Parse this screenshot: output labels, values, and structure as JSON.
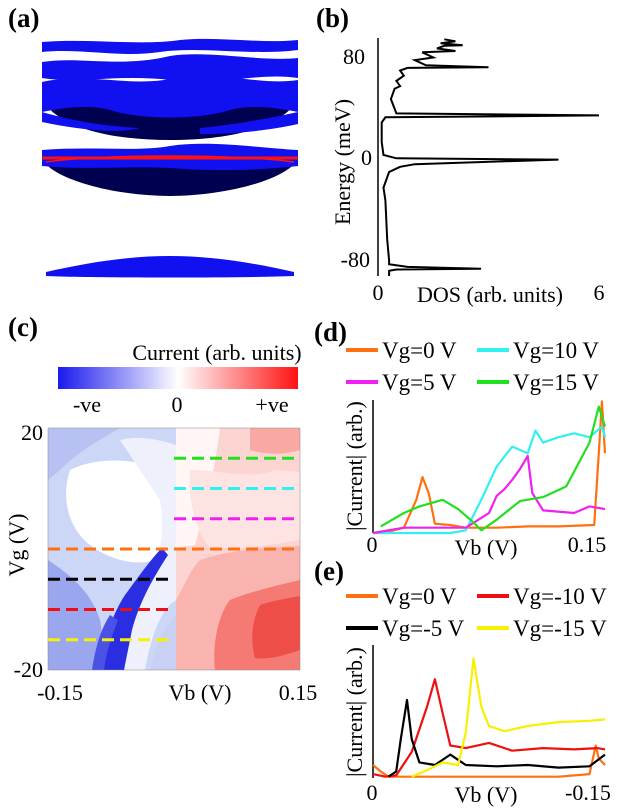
{
  "panels": {
    "a": {
      "label": "(a)"
    },
    "b": {
      "label": "(b)"
    },
    "c": {
      "label": "(c)"
    },
    "d": {
      "label": "(d)"
    },
    "e": {
      "label": "(e)"
    }
  },
  "colors": {
    "band_blue": "#1010f0",
    "band_dark": "#000050",
    "fermi_red": "#ff1010",
    "orange": "#ff7010",
    "cyan": "#30f0f0",
    "magenta": "#f020f0",
    "green": "#20e020",
    "red": "#ee1010",
    "black": "#000000",
    "yellow": "#f8f000"
  },
  "chart_data": [
    {
      "id": "b",
      "type": "line",
      "xlabel": "DOS (arb. units)",
      "ylabel": "Energy (meV)",
      "xlim": [
        0,
        6
      ],
      "ylim": [
        -88,
        95
      ],
      "xticks": [
        "0",
        "6"
      ],
      "yticks": [
        "80",
        "0",
        "-80"
      ],
      "series": [
        {
          "points": [
            [
              0.3,
              -88
            ],
            [
              0.3,
              -84
            ],
            [
              0.5,
              -83
            ],
            [
              2.8,
              -82.5
            ],
            [
              0.8,
              -81
            ],
            [
              0.3,
              -79
            ],
            [
              0.3,
              -76
            ],
            [
              0.25,
              -60
            ],
            [
              0.2,
              -30
            ],
            [
              0.15,
              -20
            ],
            [
              0.3,
              -8
            ],
            [
              0.6,
              -4
            ],
            [
              1.0,
              -2
            ],
            [
              4.9,
              1.5
            ],
            [
              0.5,
              2.5
            ],
            [
              0.15,
              5
            ],
            [
              0.1,
              15
            ],
            [
              0.1,
              30
            ],
            [
              0.2,
              34
            ],
            [
              6.0,
              35.5
            ],
            [
              0.5,
              37
            ],
            [
              0.35,
              48
            ],
            [
              0.45,
              56
            ],
            [
              0.6,
              58
            ],
            [
              0.5,
              62
            ],
            [
              0.7,
              66
            ],
            [
              0.6,
              70
            ],
            [
              0.8,
              72
            ],
            [
              3.0,
              72.5
            ],
            [
              1.3,
              74
            ],
            [
              1.0,
              78
            ],
            [
              1.5,
              80
            ],
            [
              1.2,
              84
            ],
            [
              2.1,
              85
            ],
            [
              1.6,
              87
            ],
            [
              1.8,
              89
            ],
            [
              2.3,
              89.5
            ],
            [
              1.7,
              91
            ],
            [
              2.1,
              92.5
            ],
            [
              1.8,
              94
            ]
          ]
        }
      ]
    },
    {
      "id": "c",
      "type": "heatmap",
      "title": "Current (arb. units)",
      "colorbar_ticks": [
        "-ve",
        "0",
        "+ve"
      ],
      "xlabel": "Vb (V)",
      "ylabel": "Vg (V)",
      "xlim": [
        -0.15,
        0.15
      ],
      "ylim": [
        -20,
        20
      ],
      "xticks": [
        "-0.15",
        "0.15"
      ],
      "yticks": [
        "20",
        "-20"
      ],
      "dashed_lines": [
        {
          "color": "green",
          "vg": 15,
          "vb_start": 0,
          "vb_end": 0.15
        },
        {
          "color": "cyan",
          "vg": 10,
          "vb_start": 0,
          "vb_end": 0.15
        },
        {
          "color": "magenta",
          "vg": 5,
          "vb_start": 0,
          "vb_end": 0.15
        },
        {
          "color": "orange",
          "vg": 0,
          "vb_start": -0.15,
          "vb_end": 0.15
        },
        {
          "color": "black",
          "vg": -5,
          "vb_start": -0.15,
          "vb_end": 0
        },
        {
          "color": "red",
          "vg": -10,
          "vb_start": -0.15,
          "vb_end": 0
        },
        {
          "color": "yellow",
          "vg": -15,
          "vb_start": -0.15,
          "vb_end": 0
        }
      ]
    },
    {
      "id": "d",
      "type": "line",
      "xlabel": "Vb (V)",
      "ylabel": "|Current| (arb.)",
      "xlim": [
        0,
        0.15
      ],
      "ylim": [
        0,
        1
      ],
      "xticks": [
        "0",
        "0.15"
      ],
      "legend": [
        "Vg=0 V",
        "Vg=10 V",
        "Vg=5 V",
        "Vg=15 V"
      ],
      "series": [
        {
          "name": "Vg=0 V",
          "color": "orange",
          "points": [
            [
              0,
              0
            ],
            [
              0.01,
              0.01
            ],
            [
              0.02,
              0.04
            ],
            [
              0.028,
              0.25
            ],
            [
              0.032,
              0.42
            ],
            [
              0.036,
              0.3
            ],
            [
              0.04,
              0.07
            ],
            [
              0.05,
              0.06
            ],
            [
              0.06,
              0.04
            ],
            [
              0.08,
              0.04
            ],
            [
              0.1,
              0.05
            ],
            [
              0.12,
              0.05
            ],
            [
              0.143,
              0.06
            ],
            [
              0.146,
              0.6
            ],
            [
              0.148,
              0.99
            ],
            [
              0.15,
              0.6
            ]
          ]
        },
        {
          "name": "Vg=10 V",
          "color": "cyan",
          "points": [
            [
              0,
              0
            ],
            [
              0.05,
              0
            ],
            [
              0.06,
              0.02
            ],
            [
              0.07,
              0.25
            ],
            [
              0.08,
              0.5
            ],
            [
              0.09,
              0.65
            ],
            [
              0.1,
              0.6
            ],
            [
              0.105,
              0.77
            ],
            [
              0.11,
              0.68
            ],
            [
              0.12,
              0.72
            ],
            [
              0.13,
              0.75
            ],
            [
              0.14,
              0.72
            ],
            [
              0.148,
              0.8
            ],
            [
              0.15,
              0.72
            ]
          ]
        },
        {
          "name": "Vg=5 V",
          "color": "magenta",
          "points": [
            [
              0,
              0
            ],
            [
              0.02,
              0.04
            ],
            [
              0.04,
              0.04
            ],
            [
              0.06,
              0.04
            ],
            [
              0.075,
              0.15
            ],
            [
              0.08,
              0.28
            ],
            [
              0.085,
              0.33
            ],
            [
              0.09,
              0.4
            ],
            [
              0.095,
              0.48
            ],
            [
              0.1,
              0.58
            ],
            [
              0.103,
              0.3
            ],
            [
              0.11,
              0.17
            ],
            [
              0.13,
              0.15
            ],
            [
              0.14,
              0.2
            ],
            [
              0.15,
              0.18
            ]
          ]
        },
        {
          "name": "Vg=15 V",
          "color": "green",
          "points": [
            [
              0.005,
              0.05
            ],
            [
              0.02,
              0.15
            ],
            [
              0.03,
              0.2
            ],
            [
              0.045,
              0.25
            ],
            [
              0.055,
              0.18
            ],
            [
              0.065,
              0.08
            ],
            [
              0.07,
              0.02
            ],
            [
              0.08,
              0.1
            ],
            [
              0.095,
              0.24
            ],
            [
              0.11,
              0.27
            ],
            [
              0.125,
              0.35
            ],
            [
              0.14,
              0.68
            ],
            [
              0.146,
              0.95
            ],
            [
              0.15,
              0.8
            ]
          ]
        }
      ]
    },
    {
      "id": "e",
      "type": "line",
      "xlabel": "Vb (V)",
      "ylabel": "|Current| (arb.)",
      "xlim": [
        0,
        -0.15
      ],
      "ylim": [
        0,
        1
      ],
      "xticks": [
        "0",
        "-0.15"
      ],
      "legend": [
        "Vg=0 V",
        "Vg=-10 V",
        "Vg=-5 V",
        "Vg=-15 V"
      ],
      "series": [
        {
          "name": "Vg=0 V",
          "color": "orange",
          "points": [
            [
              0,
              0.1
            ],
            [
              -0.005,
              0.05
            ],
            [
              -0.01,
              0.01
            ],
            [
              -0.03,
              0.01
            ],
            [
              -0.08,
              0.01
            ],
            [
              -0.12,
              0.01
            ],
            [
              -0.14,
              0.03
            ],
            [
              -0.144,
              0.25
            ],
            [
              -0.146,
              0.15
            ],
            [
              -0.15,
              0.1
            ]
          ]
        },
        {
          "name": "Vg=-10 V",
          "color": "red",
          "points": [
            [
              0,
              0.03
            ],
            [
              -0.008,
              0.01
            ],
            [
              -0.015,
              0.02
            ],
            [
              -0.025,
              0.2
            ],
            [
              -0.035,
              0.55
            ],
            [
              -0.04,
              0.76
            ],
            [
              -0.045,
              0.5
            ],
            [
              -0.05,
              0.25
            ],
            [
              -0.06,
              0.23
            ],
            [
              -0.075,
              0.27
            ],
            [
              -0.09,
              0.21
            ],
            [
              -0.11,
              0.23
            ],
            [
              -0.13,
              0.22
            ],
            [
              -0.145,
              0.23
            ],
            [
              -0.15,
              0.22
            ]
          ]
        },
        {
          "name": "Vg=-5 V",
          "color": "black",
          "points": [
            [
              -0.01,
              0.01
            ],
            [
              -0.015,
              0.05
            ],
            [
              -0.018,
              0.3
            ],
            [
              -0.022,
              0.6
            ],
            [
              -0.025,
              0.3
            ],
            [
              -0.03,
              0.12
            ],
            [
              -0.04,
              0.1
            ],
            [
              -0.05,
              0.18
            ],
            [
              -0.06,
              0.1
            ],
            [
              -0.08,
              0.09
            ],
            [
              -0.1,
              0.1
            ],
            [
              -0.12,
              0.08
            ],
            [
              -0.14,
              0.09
            ],
            [
              -0.15,
              0.18
            ]
          ]
        },
        {
          "name": "Vg=-15 V",
          "color": "yellow",
          "points": [
            [
              -0.025,
              0.01
            ],
            [
              -0.035,
              0.06
            ],
            [
              -0.045,
              0.12
            ],
            [
              -0.055,
              0.1
            ],
            [
              -0.06,
              0.35
            ],
            [
              -0.065,
              0.92
            ],
            [
              -0.07,
              0.55
            ],
            [
              -0.075,
              0.4
            ],
            [
              -0.085,
              0.36
            ],
            [
              -0.1,
              0.4
            ],
            [
              -0.12,
              0.43
            ],
            [
              -0.14,
              0.44
            ],
            [
              -0.15,
              0.45
            ]
          ]
        }
      ]
    }
  ]
}
